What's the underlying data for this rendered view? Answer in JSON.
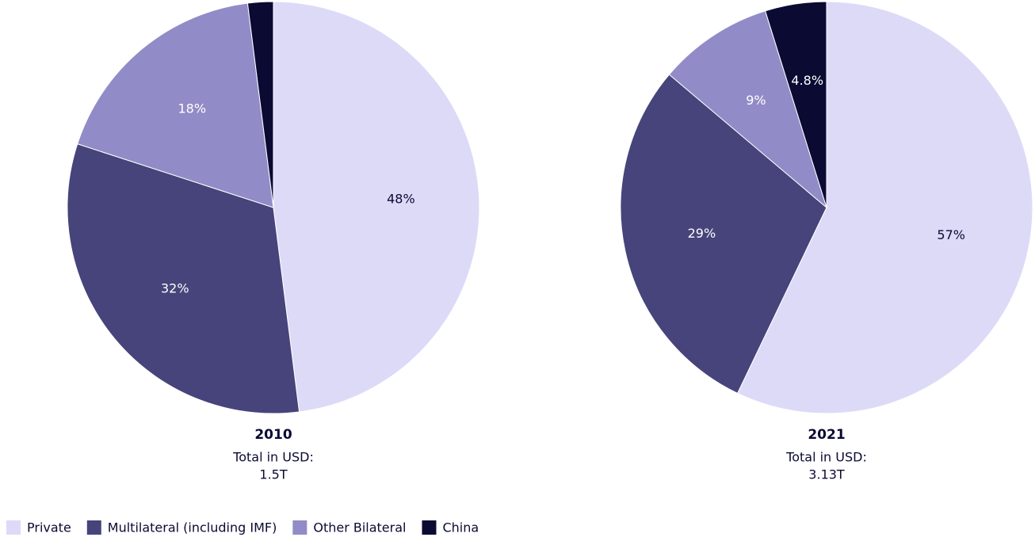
{
  "chart_data": [
    {
      "type": "pie",
      "title": "2010",
      "total_label": "Total in USD:",
      "total": "1.5T",
      "categories": [
        "Private",
        "Multilateral (including IMF)",
        "Other Bilateral",
        "China"
      ],
      "values": [
        48,
        32,
        18,
        2
      ],
      "value_labels": [
        "48%",
        "32%",
        "18%",
        null
      ],
      "colors": [
        "#dddaf8",
        "#46447a",
        "#918cc7",
        "#0b0a33"
      ]
    },
    {
      "type": "pie",
      "title": "2021",
      "total_label": "Total in USD:",
      "total": "3.13T",
      "categories": [
        "Private",
        "Multilateral (including IMF)",
        "Other Bilateral",
        "China"
      ],
      "values": [
        57,
        29,
        9,
        4.8
      ],
      "value_labels": [
        "57%",
        "29%",
        "9%",
        "4.8%"
      ],
      "colors": [
        "#dddaf8",
        "#46447a",
        "#918cc7",
        "#0b0a33"
      ]
    }
  ]
}
